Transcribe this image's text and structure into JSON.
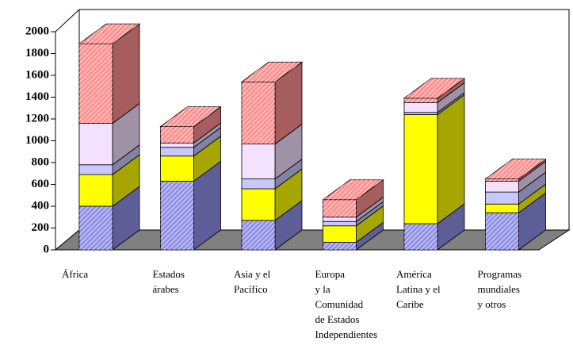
{
  "chart_data": {
    "type": "bar3d_stacked",
    "categories": [
      [
        "África"
      ],
      [
        "Estados",
        "árabes"
      ],
      [
        "Asia  y el",
        "Pacífico"
      ],
      [
        "Europa",
        "y la",
        "Comunidad",
        " de Estados",
        "Independientes"
      ],
      [
        "América",
        "Latina y el",
        "Caribe"
      ],
      [
        "Programas",
        "mundiales",
        "y otros"
      ]
    ],
    "series": [
      {
        "color": "#8f8fe8",
        "values": [
          400,
          630,
          270,
          70,
          240,
          340
        ]
      },
      {
        "color": "#ffff00",
        "values": [
          290,
          230,
          290,
          150,
          1000,
          80
        ]
      },
      {
        "color": "#c8c8ff",
        "values": [
          90,
          80,
          90,
          40,
          20,
          110
        ]
      },
      {
        "color": "#f4e0ff",
        "values": [
          380,
          40,
          320,
          40,
          90,
          100
        ]
      },
      {
        "color": "#ff8f8f",
        "values": [
          730,
          150,
          570,
          160,
          40,
          20
        ]
      }
    ],
    "ylim": [
      0,
      2000
    ],
    "yticks": [
      0,
      200,
      400,
      600,
      800,
      1000,
      1200,
      1400,
      1600,
      1800,
      2000
    ]
  }
}
